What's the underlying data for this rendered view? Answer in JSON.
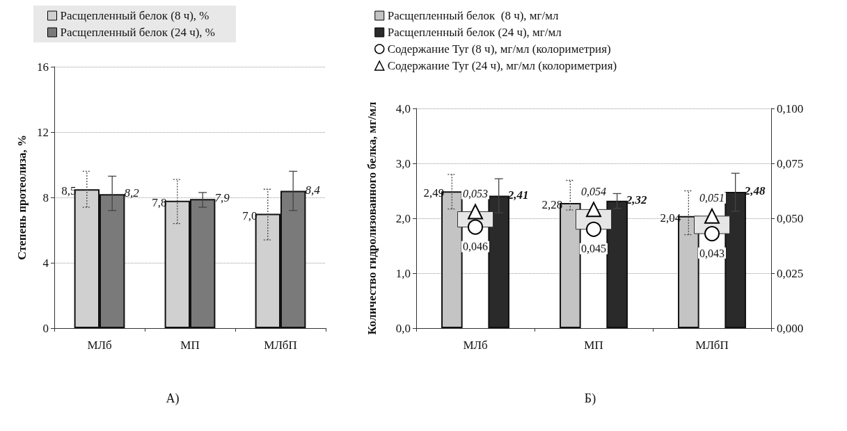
{
  "chart_data": [
    {
      "type": "bar",
      "ylabel": "Степень протеолиза, %",
      "categories": [
        "МЛб",
        "МП",
        "МЛбП"
      ],
      "series": [
        {
          "name": "Расщепленный белок (8 ч), %",
          "color": "#d0d0d0",
          "values": [
            8.5,
            7.8,
            7.0
          ],
          "value_labels": [
            "8,5",
            "7,8",
            "7,0"
          ],
          "errors": [
            [
              7.4,
              9.6
            ],
            [
              6.4,
              9.1
            ],
            [
              5.4,
              8.5
            ]
          ]
        },
        {
          "name": "Расщепленный белок (24 ч), %",
          "color": "#7a7a7a",
          "values": [
            8.2,
            7.9,
            8.4
          ],
          "value_labels": [
            "8,2",
            "7,9",
            "8,4"
          ],
          "errors": [
            [
              7.2,
              9.3
            ],
            [
              7.4,
              8.3
            ],
            [
              7.2,
              9.6
            ]
          ]
        }
      ],
      "ylim": [
        0,
        16
      ],
      "yticks": [
        0,
        4,
        8,
        12,
        16
      ],
      "grid": "y",
      "legend": "top left",
      "annotations": [
        "А)"
      ]
    },
    {
      "type": "bar",
      "ylabel": "Количество гидролизованного белка, мг/мл",
      "categories": [
        "МЛб",
        "МП",
        "МЛбП"
      ],
      "series": [
        {
          "name": "Расщепленный белок  (8 ч), мг/мл",
          "color": "#c4c4c4",
          "values": [
            2.49,
            2.28,
            2.04
          ],
          "value_labels": [
            "2,49",
            "2,28",
            "2,04"
          ],
          "errors": [
            [
              2.17,
              2.8
            ],
            [
              2.15,
              2.69
            ],
            [
              1.7,
              2.5
            ]
          ]
        },
        {
          "name": "Расщепленный белок (24 ч), мг/мл",
          "color": "#2a2a2a",
          "values": [
            2.41,
            2.32,
            2.48
          ],
          "value_labels": [
            "2,41",
            "2,32",
            "2,48"
          ],
          "errors": [
            [
              2.1,
              2.72
            ],
            [
              2.18,
              2.45
            ],
            [
              2.13,
              2.82
            ]
          ]
        },
        {
          "type": "bar",
          "axis": "y2",
          "color": "#e6e6e6",
          "base": [
            0.046,
            0.045,
            0.043
          ],
          "values": [
            0.007,
            0.009,
            0.008
          ]
        },
        {
          "type": "scatter",
          "axis": "y2",
          "marker": "circle",
          "name": "Содержание Tyr (8 ч), мг/мл (колориметрия)",
          "color": "#ffffff",
          "x": [
            "МЛб",
            "МП",
            "МЛбП"
          ],
          "values": [
            0.046,
            0.045,
            0.043
          ],
          "value_labels": [
            "0,046",
            "0,045",
            "0,043"
          ]
        },
        {
          "type": "scatter",
          "axis": "y2",
          "marker": "triangle",
          "name": "Содержание Tyr (24 ч), мг/мл (колориметрия)",
          "color": "#ffffff",
          "x": [
            "МЛб",
            "МП",
            "МЛбП"
          ],
          "values": [
            0.053,
            0.054,
            0.051
          ],
          "value_labels": [
            "0,053",
            "0,054",
            "0,051"
          ]
        }
      ],
      "ylim": [
        0,
        4
      ],
      "yticks": [
        {
          "value": 0,
          "label": "0,0"
        },
        {
          "value": 1,
          "label": "1,0"
        },
        {
          "value": 2,
          "label": "2,0"
        },
        {
          "value": 3,
          "label": "3,0"
        },
        {
          "value": 4,
          "label": "4,0"
        }
      ],
      "y2lim": [
        0,
        0.1
      ],
      "y2ticks": [
        {
          "value": 0,
          "label": "0,000"
        },
        {
          "value": 0.025,
          "label": "0,025"
        },
        {
          "value": 0.05,
          "label": "0,050"
        },
        {
          "value": 0.075,
          "label": "0,075"
        },
        {
          "value": 0.1,
          "label": "0,100"
        }
      ],
      "grid": "y",
      "legend": "top left",
      "annotations": [
        "Б)"
      ]
    }
  ]
}
